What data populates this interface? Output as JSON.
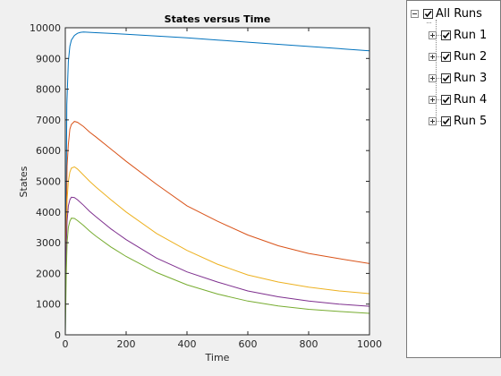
{
  "chart_data": {
    "type": "line",
    "title": "States versus Time",
    "xlabel": "Time",
    "ylabel": "States",
    "xlim": [
      0,
      1000
    ],
    "ylim": [
      0,
      10000
    ],
    "xticks": [
      0,
      200,
      400,
      600,
      800,
      1000
    ],
    "yticks": [
      0,
      1000,
      2000,
      3000,
      4000,
      5000,
      6000,
      7000,
      8000,
      9000,
      10000
    ],
    "grid": false,
    "series": [
      {
        "color": "#0072bd",
        "x": [
          0,
          5,
          10,
          15,
          20,
          30,
          40,
          50,
          60,
          80,
          100,
          200,
          300,
          400,
          500,
          600,
          700,
          800,
          900,
          1000
        ],
        "y": [
          0,
          7500,
          8900,
          9400,
          9600,
          9750,
          9820,
          9850,
          9860,
          9850,
          9840,
          9790,
          9730,
          9670,
          9600,
          9530,
          9460,
          9390,
          9320,
          9250
        ]
      },
      {
        "color": "#d95319",
        "x": [
          0,
          3,
          6,
          10,
          15,
          20,
          30,
          40,
          60,
          80,
          100,
          150,
          200,
          300,
          400,
          500,
          600,
          700,
          800,
          900,
          1000
        ],
        "y": [
          1800,
          3400,
          5500,
          6200,
          6700,
          6850,
          6950,
          6920,
          6780,
          6600,
          6450,
          6050,
          5650,
          4900,
          4200,
          3700,
          3250,
          2900,
          2650,
          2480,
          2320
        ]
      },
      {
        "color": "#edb120",
        "x": [
          0,
          3,
          6,
          10,
          15,
          20,
          30,
          40,
          60,
          80,
          100,
          150,
          200,
          300,
          400,
          500,
          600,
          700,
          800,
          900,
          1000
        ],
        "y": [
          1800,
          2900,
          4400,
          5000,
          5300,
          5430,
          5470,
          5400,
          5200,
          5000,
          4820,
          4400,
          4000,
          3300,
          2750,
          2300,
          1950,
          1720,
          1550,
          1430,
          1340
        ]
      },
      {
        "color": "#7e2f8e",
        "x": [
          0,
          3,
          6,
          10,
          15,
          20,
          30,
          40,
          60,
          80,
          100,
          150,
          200,
          300,
          400,
          500,
          600,
          700,
          800,
          900,
          1000
        ],
        "y": [
          1800,
          2800,
          3700,
          4200,
          4400,
          4480,
          4470,
          4400,
          4220,
          4020,
          3850,
          3450,
          3100,
          2500,
          2050,
          1720,
          1430,
          1240,
          1100,
          1000,
          930
        ]
      },
      {
        "color": "#77ac30",
        "x": [
          0,
          3,
          6,
          10,
          15,
          20,
          30,
          40,
          60,
          80,
          100,
          150,
          200,
          300,
          400,
          500,
          600,
          700,
          800,
          900,
          1000
        ],
        "y": [
          0,
          1900,
          3000,
          3500,
          3700,
          3800,
          3790,
          3720,
          3560,
          3380,
          3220,
          2860,
          2550,
          2030,
          1630,
          1330,
          1100,
          940,
          830,
          760,
          700
        ]
      }
    ]
  },
  "tree": {
    "root": {
      "label": "All Runs",
      "checked": true
    },
    "items": [
      {
        "label": "Run 1",
        "checked": true
      },
      {
        "label": "Run 2",
        "checked": true
      },
      {
        "label": "Run 3",
        "checked": true
      },
      {
        "label": "Run 4",
        "checked": true
      },
      {
        "label": "Run 5",
        "checked": true
      }
    ]
  }
}
